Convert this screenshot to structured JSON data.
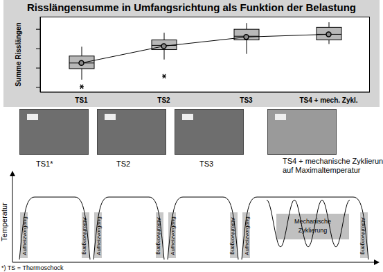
{
  "chart_data": {
    "type": "boxplot",
    "title": "Risslängensumme in Umfangsrichtung als Funktion der Belastung",
    "y_label": "Summe Risslängen",
    "categories": [
      "TS1",
      "TS2",
      "TS3",
      "TS4 + mech. Zykl."
    ],
    "boxes": [
      {
        "whisker_low": 1.4,
        "q1": 1.97,
        "median": 2.26,
        "q3": 2.62,
        "whisker_high": 3.1,
        "mean": 2.26,
        "outliers": [
          1.04
        ]
      },
      {
        "whisker_low": 2.44,
        "q1": 2.95,
        "median": 3.17,
        "q3": 3.45,
        "whisker_high": 3.82,
        "mean": 3.13,
        "outliers": [
          1.58
        ]
      },
      {
        "whisker_low": 2.73,
        "q1": 3.45,
        "median": 3.64,
        "q3": 4.0,
        "whisker_high": 4.32,
        "mean": 3.6,
        "outliers": []
      },
      {
        "whisker_low": 3.24,
        "q1": 3.45,
        "median": 3.74,
        "q3": 4.1,
        "whisker_high": 4.36,
        "mean": 3.74,
        "outliers": []
      }
    ],
    "ylim": [
      0.75,
      4.65
    ],
    "yticks": [
      1,
      2,
      3,
      4
    ],
    "tick_labels": "x",
    "grid": false,
    "color": "#b8b8b8",
    "marker": "circle"
  },
  "photos": [
    {
      "label": "TS1*"
    },
    {
      "label": "TS2"
    },
    {
      "label": "TS3"
    },
    {
      "label": "TS4 + mechanische Zyklierung auf Maximaltemperatur"
    }
  ],
  "diagram": {
    "y_label": "Temperatur",
    "heating": "Aufheizvorgang",
    "cooling": "Abkühlvorgang",
    "mechanical": "Mechanische Zyklierung"
  },
  "footnote": "*) TS = Thermoschock"
}
